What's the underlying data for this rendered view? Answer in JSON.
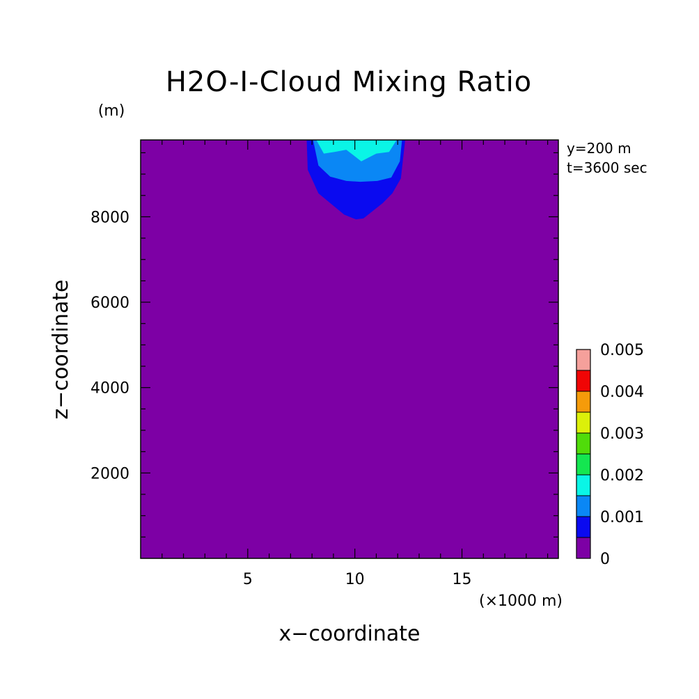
{
  "chart_data": {
    "type": "heatmap",
    "subtype": "filled-contour",
    "title": "H2O-I-Cloud Mixing Ratio",
    "xlabel": "x−coordinate",
    "ylabel": "z−coordinate",
    "x_unit": "(×1000 m)",
    "y_unit": "(m)",
    "annotations": [
      "y=200 m",
      "t=3600 sec"
    ],
    "xlim": [
      0,
      19.5
    ],
    "ylim": [
      0,
      9800
    ],
    "x_ticks": [
      5,
      10,
      15
    ],
    "x_tick_labels": [
      "5",
      "10",
      "15"
    ],
    "y_ticks": [
      2000,
      4000,
      6000,
      8000
    ],
    "y_tick_labels": [
      "2000",
      "4000",
      "6000",
      "8000"
    ],
    "background_color": "#7d00a5",
    "colorbar": {
      "levels": [
        0,
        0.0005,
        0.001,
        0.0015,
        0.002,
        0.0025,
        0.003,
        0.0035,
        0.004,
        0.0045,
        0.005
      ],
      "tick_labels": [
        "0",
        "0.001",
        "0.002",
        "0.003",
        "0.004",
        "0.005"
      ],
      "colors": [
        "#7d00a5",
        "#0a0af0",
        "#0a87f5",
        "#0af5e6",
        "#14e650",
        "#50dc0a",
        "#dcf00a",
        "#f59b0a",
        "#f00505",
        "#f5a09b"
      ]
    },
    "contours": [
      {
        "level": 0.0005,
        "color": "#0a0af0",
        "points": [
          [
            7.75,
            9800
          ],
          [
            7.8,
            9100
          ],
          [
            8.3,
            8550
          ],
          [
            9.5,
            8050
          ],
          [
            10.05,
            7940
          ],
          [
            10.4,
            7960
          ],
          [
            11.3,
            8320
          ],
          [
            11.75,
            8550
          ],
          [
            12.15,
            8900
          ],
          [
            12.35,
            9800
          ]
        ]
      },
      {
        "level": 0.001,
        "color": "#0a87f5",
        "points": [
          [
            8.05,
            9800
          ],
          [
            8.3,
            9200
          ],
          [
            8.85,
            8940
          ],
          [
            9.6,
            8840
          ],
          [
            10.25,
            8820
          ],
          [
            11.05,
            8840
          ],
          [
            11.7,
            8920
          ],
          [
            12.1,
            9300
          ],
          [
            12.2,
            9800
          ]
        ]
      },
      {
        "level": 0.0015,
        "color": "#0af5e6",
        "points": [
          [
            8.2,
            9800
          ],
          [
            8.55,
            9480
          ],
          [
            9.05,
            9520
          ],
          [
            9.6,
            9570
          ],
          [
            10.3,
            9300
          ],
          [
            11.0,
            9480
          ],
          [
            11.6,
            9520
          ],
          [
            11.95,
            9800
          ]
        ]
      }
    ]
  }
}
